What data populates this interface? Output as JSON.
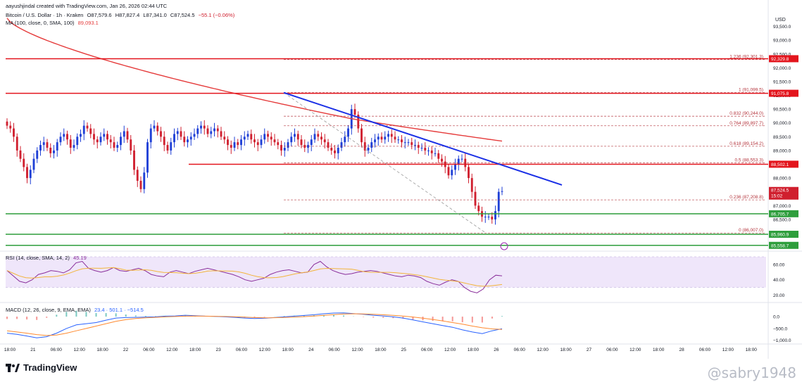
{
  "header": {
    "created_by": "aayushjindal created with TradingView.com, Jan 26, 2026 02:44 UTC",
    "symbol": "Bitcoin / U.S. Dollar · 1h · Kraken",
    "o": "O87,579.6",
    "h": "H87,827.4",
    "l": "L87,341.0",
    "c": "C87,524.5",
    "chg": "−55.1 (−0.06%)",
    "ma_label": "MA (100, close, 0, SMA, 100)",
    "ma_value": "89,093.1",
    "currency": "USD"
  },
  "footer": {
    "brand": "TradingView",
    "watermark": "@sabry1948"
  },
  "colors": {
    "up": "#1e3fd6",
    "down": "#d01f2e",
    "ma": "#e53b3b",
    "trend": "#1a2fe6",
    "resistance": "#e3151d",
    "support": "#2e9e3c",
    "fib": "#b4343c",
    "rsi": "#8a2f9b",
    "rsi_ma": "#f3b43a",
    "macd": "#2962ff",
    "signal": "#ff8a30",
    "rsi_band": "#efe6fa"
  },
  "chart_data": [
    {
      "type": "candlestick",
      "title": "Bitcoin / U.S. Dollar · 1h · Kraken",
      "ylabel": "USD",
      "ylim": [
        85400,
        94000
      ],
      "x_ticks": [
        "18:00",
        "21",
        "06:00",
        "12:00",
        "18:00",
        "22",
        "06:00",
        "12:00",
        "18:00",
        "23",
        "06:00",
        "12:00",
        "18:00",
        "24",
        "06:00",
        "12:00",
        "18:00",
        "25",
        "06:00",
        "12:00",
        "18:00",
        "26",
        "06:00",
        "12:00",
        "18:00",
        "27",
        "06:00",
        "12:00",
        "18:00",
        "28",
        "06:00",
        "12:00",
        "18:00"
      ],
      "y_ticks": [
        "93,500.0",
        "93,000.0",
        "92,500.0",
        "92,000.0",
        "91,500.0",
        "91,000.0",
        "90,500.0",
        "90,000.0",
        "89,500.0",
        "89,000.0",
        "88,500.0",
        "88,000.0",
        "87,500.0",
        "87,000.0",
        "86,500.0",
        "86,000.0"
      ],
      "close_series": [
        89900,
        89800,
        89500,
        89000,
        88700,
        88400,
        88000,
        88300,
        88700,
        89000,
        89200,
        89300,
        89100,
        88900,
        89000,
        89300,
        89500,
        89600,
        89400,
        89100,
        89200,
        89500,
        89600,
        89900,
        89800,
        89600,
        89400,
        89300,
        89500,
        89600,
        89400,
        89300,
        89100,
        89200,
        89500,
        89700,
        89400,
        89000,
        88300,
        87900,
        87600,
        88200,
        89300,
        89800,
        89900,
        89700,
        89500,
        89200,
        89000,
        89300,
        89600,
        89700,
        89500,
        89300,
        89400,
        89500,
        89600,
        89800,
        89900,
        89800,
        89600,
        89700,
        89800,
        89700,
        89500,
        89400,
        89200,
        89100,
        89300,
        89200,
        89400,
        89500,
        89600,
        89400,
        89300,
        89200,
        89400,
        89600,
        89500,
        89400,
        89300,
        89200,
        89000,
        89100,
        89300,
        89500,
        89600,
        89400,
        89200,
        89100,
        89200,
        89400,
        89600,
        89500,
        89400,
        89300,
        89100,
        89000,
        88900,
        89100,
        89300,
        89500,
        89800,
        90500,
        90300,
        89800,
        89300,
        89000,
        89100,
        89300,
        89400,
        89500,
        89400,
        89500,
        89600,
        89500,
        89400,
        89400,
        89300,
        89300,
        89300,
        89200,
        89200,
        89100,
        89100,
        89000,
        89000,
        88900,
        88900,
        88700,
        88600,
        88400,
        88100,
        88300,
        88500,
        88700,
        88700,
        88400,
        88000,
        87500,
        87000,
        86800,
        86600,
        86600,
        86600,
        86500,
        86800,
        87500,
        87524.5
      ],
      "ma_label": "MA (100, close, 0, SMA, 100)",
      "current_price": "87,524.5",
      "current_countdown": "15:02",
      "levels": [
        {
          "label": "92,329.8",
          "value": 92329.8,
          "kind": "resistance"
        },
        {
          "label": "91,075.8",
          "value": 91075.8,
          "kind": "resistance"
        },
        {
          "label": "88,502.1",
          "value": 88502.1,
          "kind": "resistance"
        },
        {
          "label": "86,705.7",
          "value": 86705.7,
          "kind": "support"
        },
        {
          "label": "85,960.9",
          "value": 85960.9,
          "kind": "support"
        },
        {
          "label": "85,558.7",
          "value": 85558.7,
          "kind": "support"
        }
      ],
      "fib_levels": [
        {
          "label": "1.236 (92,301.3)",
          "value": 92301.3
        },
        {
          "label": "1 (91,099.5)",
          "value": 91099.5
        },
        {
          "label": "0.832 (90,244.0)",
          "value": 90244.0
        },
        {
          "label": "0.764 (89,897.7)",
          "value": 89897.7
        },
        {
          "label": "0.618 (89,154.2)",
          "value": 89154.2
        },
        {
          "label": "0.5 (88,553.3)",
          "value": 88553.3
        },
        {
          "label": "0.236 (87,208.8)",
          "value": 87208.8
        },
        {
          "label": "0 (86,007.0)",
          "value": 86007.0
        }
      ],
      "trendline": {
        "from": [
          103,
          91100
        ],
        "to": [
          195,
          87750
        ]
      }
    },
    {
      "type": "line",
      "title": "RSI (14, close, SMA, 14, 2)",
      "values_label": "45.19",
      "y_ticks": [
        "60.00",
        "40.00",
        "20.00"
      ],
      "band": [
        30,
        70
      ],
      "ylim": [
        15,
        70
      ],
      "series": [
        {
          "name": "RSI",
          "values": [
            52,
            45,
            38,
            36,
            40,
            47,
            49,
            52,
            51,
            49,
            53,
            62,
            64,
            55,
            52,
            50,
            52,
            56,
            52,
            51,
            53,
            55,
            52,
            47,
            45,
            44,
            50,
            52,
            50,
            48,
            51,
            53,
            55,
            53,
            51,
            49,
            47,
            44,
            40,
            38,
            40,
            42,
            47,
            50,
            52,
            53,
            51,
            49,
            50,
            60,
            64,
            57,
            52,
            49,
            47,
            48,
            50,
            51,
            52,
            51,
            49,
            47,
            45,
            44,
            46,
            45,
            43,
            38,
            35,
            33,
            37,
            40,
            38,
            30,
            25,
            23,
            28,
            40,
            46,
            45.19
          ]
        }
      ]
    },
    {
      "type": "histogram",
      "title": "MACD (12, 26, close, 9, EMA, EMA)",
      "values_label": "23.4 · 501.1 · −514.5",
      "y_ticks": [
        "0.0",
        "−500.0",
        "−1,000.0"
      ],
      "ylim": [
        -1100,
        300
      ],
      "series": [
        {
          "name": "MACD",
          "values": [
            -700,
            -750,
            -820,
            -900,
            -850,
            -700,
            -500,
            -350,
            -300,
            -250,
            -150,
            -60,
            -40,
            -30,
            -20,
            -10,
            20,
            30,
            60,
            40,
            20,
            10,
            -10,
            -30,
            -60,
            -80,
            -70,
            -40,
            -10,
            20,
            50,
            80,
            120,
            150,
            160,
            130,
            100,
            60,
            30,
            -10,
            -60,
            -140,
            -220,
            -300,
            -380,
            -450,
            -560,
            -650,
            -720,
            -600,
            -514.5
          ]
        },
        {
          "name": "Signal",
          "values": [
            -600,
            -650,
            -700,
            -760,
            -800,
            -780,
            -700,
            -600,
            -500,
            -400,
            -300,
            -200,
            -130,
            -80,
            -50,
            -30,
            -10,
            5,
            20,
            25,
            20,
            15,
            5,
            -5,
            -20,
            -40,
            -50,
            -45,
            -35,
            -20,
            0,
            25,
            55,
            85,
            110,
            120,
            115,
            100,
            80,
            55,
            25,
            -15,
            -65,
            -120,
            -180,
            -250,
            -320,
            -400,
            -470,
            -520,
            -540
          ]
        }
      ]
    }
  ]
}
